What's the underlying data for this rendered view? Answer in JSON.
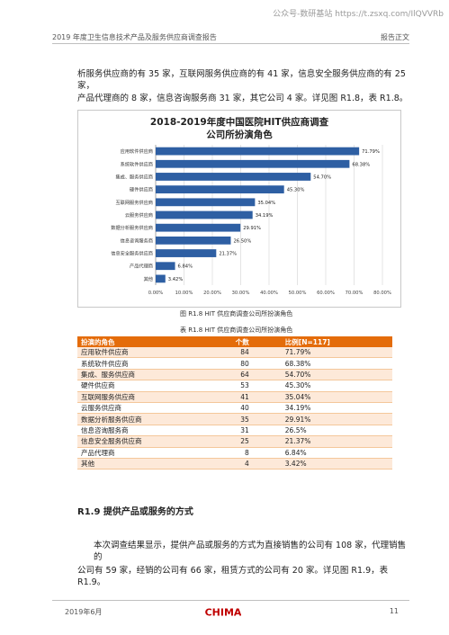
{
  "watermark": "公众号-数研基站 https://t.zsxq.com/IlQVVRb",
  "header": {
    "left": "2019 年度卫生信息技术产品及服务供应商调查报告",
    "right": "报告正文"
  },
  "paragraphs": {
    "p1_line1": "析服务供应商的有 35 家，互联网服务供应商的有 41 家，信息安全服务供应商的有 25 家，",
    "p1_line2": "产品代理商的 8 家，信息咨询服务商 31 家，其它公司 4 家。详见图 R1.8，表 R1.8。",
    "p2_line1": "本次调查结果显示，提供产品或服务的方式为直接销售的公司有 108 家，代理销售的",
    "p2_line2": "公司有 59 家，经销的公司有 66 家，租赁方式的公司有 20 家。详见图 R1.9，表 R1.9。"
  },
  "figure_caption": "图 R1.8   HIT 供应商调查公司所扮演角色",
  "table_caption": "表 R1.8   HIT 供应商调查公司所扮演角色",
  "section_title": "R1.9  提供产品或服务的方式",
  "chart_data": {
    "type": "bar",
    "orientation": "horizontal",
    "title_line1": "2018-2019年度中国医院HIT供应商调查",
    "title_line2": "公司所扮演角色",
    "categories": [
      "应用软件供应商",
      "系统软件供应商",
      "集成、服务供应商",
      "硬件供应商",
      "互联网服务供应商",
      "云服务供应商",
      "数据分析服务供应商",
      "信息咨询服务商",
      "信息安全服务供应商",
      "产品代理商",
      "其他"
    ],
    "values": [
      71.79,
      68.38,
      54.7,
      45.3,
      35.04,
      34.19,
      29.91,
      26.5,
      21.37,
      6.84,
      3.42
    ],
    "value_labels": [
      "71.79%",
      "68.38%",
      "54.70%",
      "45.30%",
      "35.04%",
      "34.19%",
      "29.91%",
      "26.50%",
      "21.37%",
      "6.84%",
      "3.42%"
    ],
    "xlim": [
      0,
      80
    ],
    "ticks": [
      "0.00%",
      "10.00%",
      "20.00%",
      "30.00%",
      "40.00%",
      "50.00%",
      "60.00%",
      "70.00%",
      "80.00%"
    ],
    "grid": true,
    "bar_color": "#2e5fa3"
  },
  "table": {
    "headers": [
      "扮演的角色",
      "个数",
      "比例[N=117]"
    ],
    "rows": [
      [
        "应用软件供应商",
        "84",
        "71.79%"
      ],
      [
        "系统软件供应商",
        "80",
        "68.38%"
      ],
      [
        "集成、服务供应商",
        "64",
        "54.70%"
      ],
      [
        "硬件供应商",
        "53",
        "45.30%"
      ],
      [
        "互联网服务供应商",
        "41",
        "35.04%"
      ],
      [
        "云服务供应商",
        "40",
        "34.19%"
      ],
      [
        "数据分析服务供应商",
        "35",
        "29.91%"
      ],
      [
        "信息咨询服务商",
        "31",
        "26.5%"
      ],
      [
        "信息安全服务供应商",
        "25",
        "21.37%"
      ],
      [
        "产品代理商",
        "8",
        "6.84%"
      ],
      [
        "其他",
        "4",
        "3.42%"
      ]
    ]
  },
  "footer": {
    "date": "2019年6月",
    "logo": "CHIMA",
    "page": "11"
  },
  "colors": {
    "table_header": "#e46c0a",
    "row_stripe": "#fde9d9",
    "logo_red": "#c00000"
  }
}
